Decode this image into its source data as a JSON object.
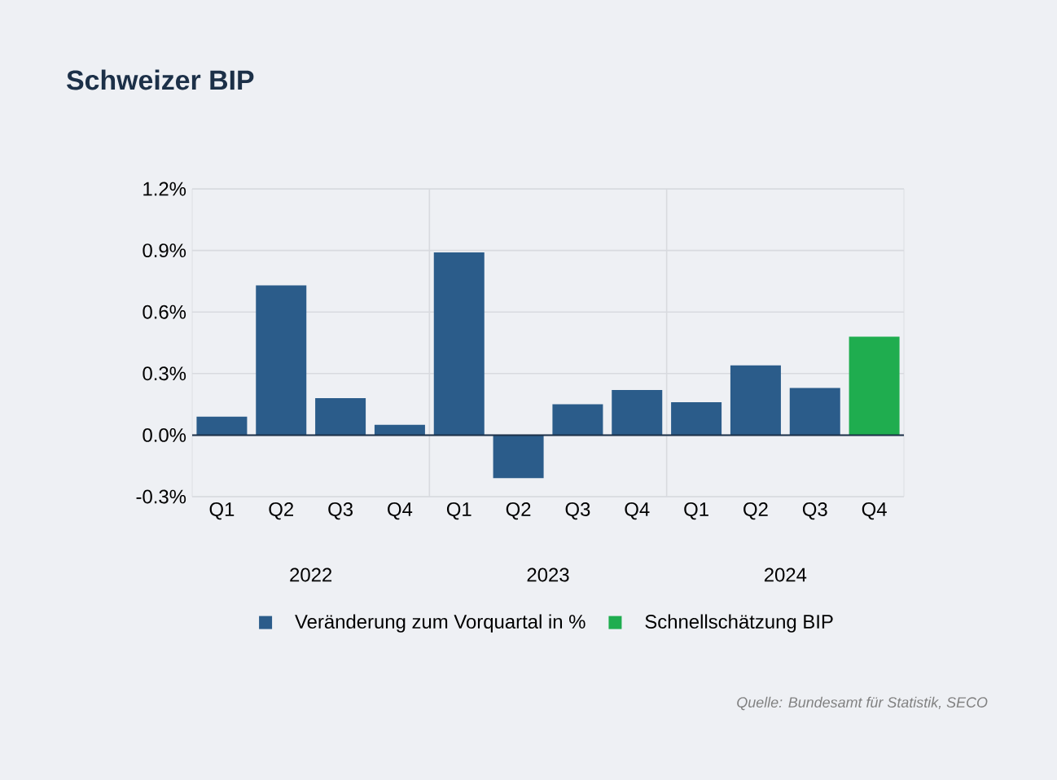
{
  "chart_data": {
    "type": "bar",
    "title": "Schweizer BIP",
    "categories": [
      "Q1",
      "Q2",
      "Q3",
      "Q4",
      "Q1",
      "Q2",
      "Q3",
      "Q4",
      "Q1",
      "Q2",
      "Q3",
      "Q4"
    ],
    "series": [
      {
        "name": "Veränderung zum Vorquartal in %",
        "color": "#2b5c8a",
        "values": [
          0.09,
          0.73,
          0.18,
          0.05,
          0.89,
          -0.21,
          0.15,
          0.22,
          0.16,
          0.34,
          0.23,
          null
        ]
      },
      {
        "name": "Schnellschätzung BIP",
        "color": "#1fad4f",
        "values": [
          null,
          null,
          null,
          null,
          null,
          null,
          null,
          null,
          null,
          null,
          null,
          0.48
        ]
      }
    ],
    "ylim": [
      -0.3,
      1.2
    ],
    "yticks": [
      {
        "value": -0.3,
        "label": "-0.3%"
      },
      {
        "value": 0.0,
        "label": "0.0%"
      },
      {
        "value": 0.3,
        "label": "0.3%"
      },
      {
        "value": 0.6,
        "label": "0.6%"
      },
      {
        "value": 0.9,
        "label": "0.9%"
      },
      {
        "value": 1.2,
        "label": "1.2%"
      }
    ],
    "grid": true,
    "legend": "bottom",
    "annotations": [
      "2022",
      "2023",
      "2024",
      "Quelle: Bundesamt für Statistik, SECO"
    ]
  }
}
